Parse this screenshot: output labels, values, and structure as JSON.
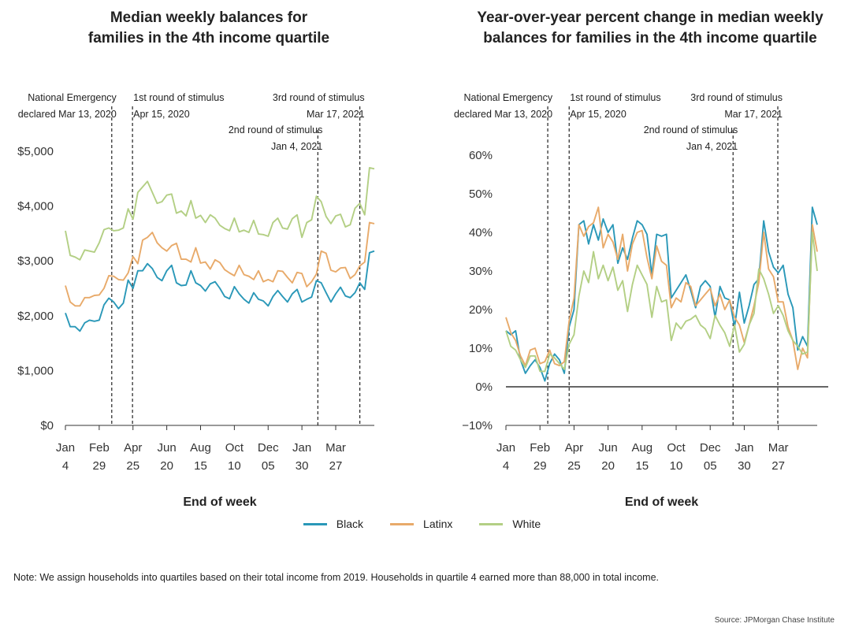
{
  "colors": {
    "Black": "#2a98b8",
    "Latinx": "#e8aa6a",
    "White": "#b3cf84",
    "axis": "#333333"
  },
  "legend": [
    {
      "name": "Black",
      "color": "#2a98b8"
    },
    {
      "name": "Latinx",
      "color": "#e8aa6a"
    },
    {
      "name": "White",
      "color": "#b3cf84"
    }
  ],
  "footer": {
    "note": "Note: We assign households into quartiles based on their total income from 2019. Households in quartile 4 earned more than 88,000 in total income.",
    "source": "Source: JPMorgan Chase Institute"
  },
  "chart_data": [
    {
      "type": "line",
      "title_lines": [
        "Median weekly balances for",
        "families in the 4th income quartile"
      ],
      "xlabel": "End of week",
      "ylabel": "",
      "x": [
        0,
        1,
        2,
        3,
        4,
        5,
        6,
        7,
        8,
        9,
        10,
        11,
        12,
        13,
        14,
        15,
        16,
        17,
        18,
        19,
        20,
        21,
        22,
        23,
        24,
        25,
        26,
        27,
        28,
        29,
        30,
        31,
        32,
        33,
        34,
        35,
        36,
        37,
        38,
        39,
        40,
        41,
        42,
        43,
        44,
        45,
        46,
        47,
        48,
        49,
        50,
        51,
        52,
        53,
        54,
        55,
        56,
        57,
        58,
        59,
        60,
        61,
        62,
        63,
        64
      ],
      "xlim": [
        0,
        64
      ],
      "ylim": [
        0,
        5000
      ],
      "yticks": [
        {
          "v": 0,
          "label": "$0"
        },
        {
          "v": 1000,
          "label": "$1,000"
        },
        {
          "v": 2000,
          "label": "$2,000"
        },
        {
          "v": 3000,
          "label": "$3,000"
        },
        {
          "v": 4000,
          "label": "$4,000"
        },
        {
          "v": 5000,
          "label": "$5,000"
        }
      ],
      "xticks": [
        {
          "x": 0,
          "month": "Jan",
          "day": "4"
        },
        {
          "x": 7,
          "month": "Feb",
          "day": "29"
        },
        {
          "x": 14,
          "month": "Apr",
          "day": "25"
        },
        {
          "x": 21,
          "month": "Jun",
          "day": "20"
        },
        {
          "x": 28,
          "month": "Aug",
          "day": "15"
        },
        {
          "x": 35,
          "month": "Oct",
          "day": "10"
        },
        {
          "x": 42,
          "month": "Dec",
          "day": "05"
        },
        {
          "x": 49,
          "month": "Jan",
          "day": "30"
        },
        {
          "x": 56,
          "month": "Mar",
          "day": "27"
        }
      ],
      "events": [
        {
          "x": 9.6,
          "line1": "National Emergency",
          "line2": "declared Mar 13, 2020",
          "row": 0,
          "anchor": "end"
        },
        {
          "x": 13.9,
          "line1": "1st round of stimulus",
          "line2": "Apr 15, 2020",
          "row": 0,
          "anchor": "start"
        },
        {
          "x": 52.3,
          "line1": "2nd round of stimulus",
          "line2": "Jan 4, 2021",
          "row": 1,
          "anchor": "end"
        },
        {
          "x": 61.0,
          "line1": "3rd round of stimulus",
          "line2": "Mar 17, 2021",
          "row": 0,
          "anchor": "end"
        }
      ],
      "series": [
        {
          "name": "Black",
          "values": [
            2050,
            1800,
            1800,
            1720,
            1870,
            1920,
            1900,
            1920,
            2200,
            2320,
            2250,
            2130,
            2230,
            2650,
            2500,
            2820,
            2820,
            2950,
            2860,
            2700,
            2640,
            2820,
            2920,
            2600,
            2550,
            2560,
            2820,
            2600,
            2550,
            2450,
            2580,
            2620,
            2500,
            2350,
            2310,
            2530,
            2400,
            2300,
            2230,
            2420,
            2300,
            2270,
            2180,
            2350,
            2460,
            2350,
            2250,
            2400,
            2480,
            2250,
            2300,
            2340,
            2640,
            2600,
            2420,
            2250,
            2400,
            2520,
            2360,
            2330,
            2420,
            2600,
            2480,
            3150,
            3180
          ]
        },
        {
          "name": "Latinx",
          "values": [
            2550,
            2250,
            2180,
            2180,
            2330,
            2330,
            2370,
            2380,
            2500,
            2730,
            2720,
            2660,
            2650,
            2780,
            3080,
            2950,
            3380,
            3430,
            3520,
            3330,
            3240,
            3180,
            3280,
            3320,
            3030,
            3030,
            2980,
            3240,
            2960,
            2980,
            2850,
            3020,
            2970,
            2840,
            2780,
            2730,
            2920,
            2750,
            2720,
            2660,
            2820,
            2620,
            2660,
            2620,
            2820,
            2810,
            2700,
            2600,
            2790,
            2770,
            2530,
            2620,
            2760,
            3180,
            3140,
            2830,
            2800,
            2870,
            2880,
            2680,
            2750,
            2910,
            2980,
            3700,
            3680
          ]
        },
        {
          "name": "White",
          "values": [
            3550,
            3100,
            3070,
            3020,
            3200,
            3180,
            3160,
            3330,
            3570,
            3600,
            3550,
            3560,
            3600,
            3950,
            3760,
            4250,
            4350,
            4450,
            4250,
            4050,
            4080,
            4200,
            4220,
            3870,
            3910,
            3820,
            4100,
            3780,
            3830,
            3700,
            3840,
            3780,
            3650,
            3590,
            3550,
            3780,
            3530,
            3560,
            3520,
            3740,
            3490,
            3480,
            3450,
            3700,
            3780,
            3600,
            3580,
            3770,
            3840,
            3430,
            3700,
            3750,
            4180,
            4080,
            3810,
            3680,
            3820,
            3850,
            3620,
            3660,
            3960,
            4050,
            3840,
            4700,
            4680
          ]
        }
      ]
    },
    {
      "type": "line",
      "title_lines": [
        "Year-over-year percent change in median weekly",
        "balances for families in the 4th income quartile"
      ],
      "xlabel": "End of week",
      "ylabel": "",
      "x": [
        0,
        1,
        2,
        3,
        4,
        5,
        6,
        7,
        8,
        9,
        10,
        11,
        12,
        13,
        14,
        15,
        16,
        17,
        18,
        19,
        20,
        21,
        22,
        23,
        24,
        25,
        26,
        27,
        28,
        29,
        30,
        31,
        32,
        33,
        34,
        35,
        36,
        37,
        38,
        39,
        40,
        41,
        42,
        43,
        44,
        45,
        46,
        47,
        48,
        49,
        50,
        51,
        52,
        53,
        54,
        55,
        56,
        57,
        58,
        59,
        60,
        61,
        62,
        63,
        64
      ],
      "xlim": [
        0,
        64
      ],
      "ylim": [
        -10,
        60
      ],
      "yticks": [
        {
          "v": -10,
          "label": "−10%"
        },
        {
          "v": 0,
          "label": "0%"
        },
        {
          "v": 10,
          "label": "10%"
        },
        {
          "v": 20,
          "label": "20%"
        },
        {
          "v": 30,
          "label": "30%"
        },
        {
          "v": 40,
          "label": "40%"
        },
        {
          "v": 50,
          "label": "50%"
        },
        {
          "v": 60,
          "label": "60%"
        }
      ],
      "xticks": [
        {
          "x": 0,
          "month": "Jan",
          "day": "4"
        },
        {
          "x": 7,
          "month": "Feb",
          "day": "29"
        },
        {
          "x": 14,
          "month": "Apr",
          "day": "25"
        },
        {
          "x": 21,
          "month": "Jun",
          "day": "20"
        },
        {
          "x": 28,
          "month": "Aug",
          "day": "15"
        },
        {
          "x": 35,
          "month": "Oct",
          "day": "10"
        },
        {
          "x": 42,
          "month": "Dec",
          "day": "05"
        },
        {
          "x": 49,
          "month": "Jan",
          "day": "30"
        },
        {
          "x": 56,
          "month": "Mar",
          "day": "27"
        }
      ],
      "events": [
        {
          "x": 8.6,
          "line1": "National Emergency",
          "line2": "declared Mar 13, 2020",
          "row": 0,
          "anchor": "end"
        },
        {
          "x": 13.0,
          "line1": "1st round of stimulus",
          "line2": "Apr 15, 2020",
          "row": 0,
          "anchor": "start"
        },
        {
          "x": 46.7,
          "line1": "2nd round of stimulus",
          "line2": "Jan 4, 2021",
          "row": 1,
          "anchor": "end"
        },
        {
          "x": 55.9,
          "line1": "3rd round of stimulus",
          "line2": "Mar 17, 2021",
          "row": 0,
          "anchor": "end"
        }
      ],
      "series": [
        {
          "name": "Black",
          "values": [
            14.5,
            13.5,
            14.5,
            7,
            3.5,
            5.5,
            7,
            5,
            1.5,
            6,
            8.5,
            7,
            3.5,
            15.5,
            20,
            42,
            43,
            37,
            42,
            38,
            43.5,
            40,
            42,
            32,
            36,
            33,
            38.5,
            43,
            42,
            39.5,
            29,
            39.5,
            39,
            39.5,
            23,
            25,
            27,
            29,
            25,
            20.5,
            26,
            27.5,
            26,
            18,
            26,
            23,
            22.5,
            15.5,
            24.5,
            16.5,
            21,
            26.5,
            28,
            43,
            35,
            31,
            29.5,
            31.5,
            24,
            20.5,
            9.5,
            13,
            10.5,
            46.5,
            42
          ]
        },
        {
          "name": "Latinx",
          "values": [
            18,
            14,
            12,
            8,
            5.5,
            9.5,
            10,
            6,
            6.5,
            9.5,
            6,
            5.5,
            6.5,
            17,
            23,
            42,
            39,
            41.5,
            42.5,
            46.5,
            36,
            39.5,
            37.5,
            33,
            39.5,
            30,
            37,
            40,
            40.5,
            33.5,
            28,
            36.5,
            32.5,
            31.5,
            20.5,
            23,
            22,
            27,
            26,
            21,
            22.5,
            24,
            25.5,
            21,
            24,
            20,
            22.5,
            18,
            16,
            11.5,
            16,
            21,
            27,
            40,
            30.5,
            28.5,
            22,
            22,
            15.5,
            12,
            4.5,
            10,
            7.5,
            42,
            35
          ]
        },
        {
          "name": "White",
          "values": [
            14.5,
            10.5,
            9.5,
            7,
            5,
            8,
            8,
            4,
            4,
            8.5,
            7.5,
            6,
            4.5,
            11,
            13.5,
            23.5,
            30,
            27,
            35,
            28,
            31.5,
            27.5,
            31,
            25,
            27.5,
            19.5,
            26.5,
            31.5,
            29,
            26.5,
            18,
            26,
            22,
            22.5,
            12,
            16.5,
            15,
            17,
            17.5,
            18.5,
            16,
            15,
            12.5,
            18.5,
            16,
            14,
            10.5,
            16,
            9,
            11,
            16,
            19,
            30.5,
            28,
            24,
            19,
            21,
            18.5,
            14.5,
            12,
            10.5,
            8.5,
            9,
            40,
            30
          ]
        }
      ]
    }
  ]
}
